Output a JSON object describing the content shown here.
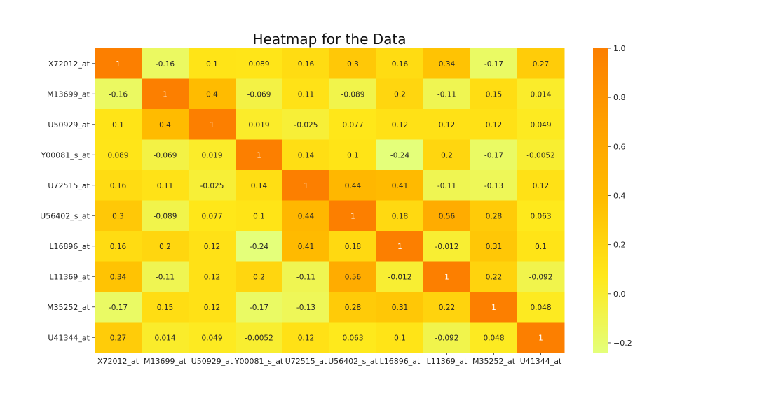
{
  "chart_data": {
    "type": "heatmap",
    "title": "Heatmap for the Data",
    "xlabel": "",
    "ylabel": "",
    "labels": [
      "X72012_at",
      "M13699_at",
      "U50929_at",
      "Y00081_s_at",
      "U72515_at",
      "U56402_s_at",
      "L16896_at",
      "L11369_at",
      "M35252_at",
      "U41344_at"
    ],
    "values": [
      [
        1,
        -0.16,
        0.1,
        0.089,
        0.16,
        0.3,
        0.16,
        0.34,
        -0.17,
        0.27
      ],
      [
        -0.16,
        1,
        0.4,
        -0.069,
        0.11,
        -0.089,
        0.2,
        -0.11,
        0.15,
        0.014
      ],
      [
        0.1,
        0.4,
        1,
        0.019,
        -0.025,
        0.077,
        0.12,
        0.12,
        0.12,
        0.049
      ],
      [
        0.089,
        -0.069,
        0.019,
        1,
        0.14,
        0.1,
        -0.24,
        0.2,
        -0.17,
        -0.0052
      ],
      [
        0.16,
        0.11,
        -0.025,
        0.14,
        1,
        0.44,
        0.41,
        -0.11,
        -0.13,
        0.12
      ],
      [
        0.3,
        -0.089,
        0.077,
        0.1,
        0.44,
        1,
        0.18,
        0.56,
        0.28,
        0.063
      ],
      [
        0.16,
        0.2,
        0.12,
        -0.24,
        0.41,
        0.18,
        1,
        -0.012,
        0.31,
        0.1
      ],
      [
        0.34,
        -0.11,
        0.12,
        0.2,
        -0.11,
        0.56,
        -0.012,
        1,
        0.22,
        -0.092
      ],
      [
        -0.17,
        0.15,
        0.12,
        -0.17,
        -0.13,
        0.28,
        0.31,
        0.22,
        1,
        0.048
      ],
      [
        0.27,
        0.014,
        0.049,
        -0.0052,
        0.12,
        0.063,
        0.1,
        -0.092,
        0.048,
        1
      ]
    ],
    "colorbar": {
      "min": -0.24,
      "max": 1.0,
      "ticks": [
        1.0,
        0.8,
        0.6,
        0.4,
        0.2,
        0.0,
        -0.2
      ],
      "tick_labels": [
        "1.0",
        "0.8",
        "0.6",
        "0.4",
        "0.2",
        "0.0",
        "−0.2"
      ],
      "colormap": "Wistia",
      "colors": [
        "#e4ff7a",
        "#ffe81a",
        "#ffbd00",
        "#ffa000",
        "#fc7f00"
      ]
    }
  }
}
